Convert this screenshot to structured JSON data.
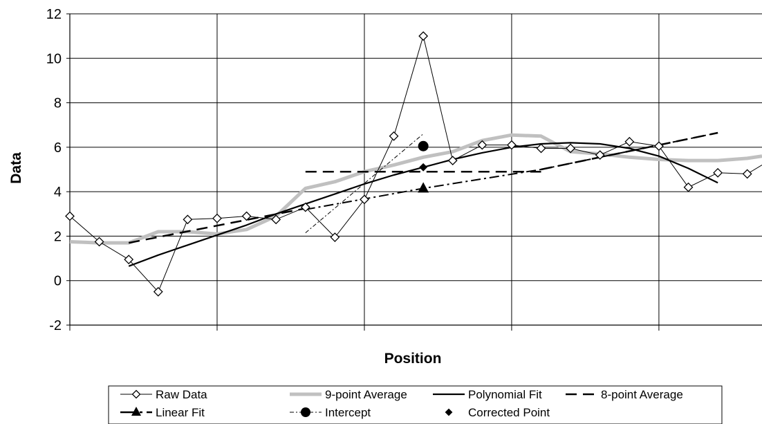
{
  "chart_data": {
    "type": "line",
    "xlabel": "Position",
    "ylabel": "Data",
    "ylim": [
      -2,
      12
    ],
    "yticks": [
      "12",
      "10",
      "8",
      "6",
      "4",
      "2",
      "0",
      "-2"
    ],
    "xlim": [
      0,
      23.5
    ],
    "grid": true,
    "legend_position": "bottom",
    "series": [
      {
        "name": "Raw Data",
        "style": "thin-line-open-diamond",
        "color": "#000000",
        "x": [
          0,
          1,
          2,
          3,
          4,
          5,
          6,
          7,
          8,
          9,
          10,
          11,
          12,
          13,
          14,
          15,
          16,
          17,
          18,
          19,
          20,
          21,
          22,
          23,
          23.5
        ],
        "y": [
          2.9,
          1.75,
          0.95,
          -0.5,
          2.75,
          2.8,
          2.9,
          2.75,
          3.3,
          1.95,
          3.65,
          6.5,
          11.0,
          5.4,
          6.1,
          6.1,
          5.95,
          5.95,
          5.65,
          6.25,
          6.05,
          4.2,
          4.85,
          4.8,
          5.2
        ]
      },
      {
        "name": "9-point Average",
        "style": "thick-grey-line",
        "color": "#c0c0c0",
        "x": [
          0,
          1,
          2,
          3,
          4,
          5,
          6,
          7,
          8,
          9,
          10,
          11,
          12,
          13,
          14,
          15,
          16,
          17,
          18,
          19,
          20,
          21,
          22,
          23,
          23.5
        ],
        "y": [
          1.75,
          1.7,
          1.7,
          2.2,
          2.2,
          2.1,
          2.3,
          2.9,
          4.15,
          4.45,
          4.9,
          5.2,
          5.55,
          5.8,
          6.3,
          6.55,
          6.5,
          5.8,
          5.7,
          5.55,
          5.45,
          5.4,
          5.4,
          5.5,
          5.6
        ]
      },
      {
        "name": "Polynomial  Fit",
        "style": "solid-line",
        "color": "#000000",
        "x": [
          2,
          3,
          4,
          5,
          6,
          7,
          8,
          9,
          10,
          11,
          12,
          13,
          14,
          15,
          16,
          17,
          18,
          19,
          20,
          21,
          22
        ],
        "y": [
          0.65,
          1.15,
          1.6,
          2.05,
          2.5,
          3.0,
          3.45,
          3.9,
          4.35,
          4.75,
          5.1,
          5.45,
          5.75,
          6.0,
          6.15,
          6.2,
          6.15,
          5.95,
          5.6,
          5.05,
          4.4
        ]
      },
      {
        "name": "8-point Average",
        "style": "long-dash-line",
        "color": "#000000",
        "x": [
          2,
          3,
          4,
          5,
          6,
          7,
          8
        ],
        "y": [
          1.7,
          2.0,
          2.25,
          2.5,
          2.75,
          3.0,
          3.25
        ],
        "segments": [
          {
            "x": [
              2,
              8
            ],
            "y": [
              1.7,
              3.25
            ]
          },
          {
            "x": [
              8,
              16
            ],
            "y": [
              4.9,
              4.9
            ]
          },
          {
            "x": [
              16,
              22
            ],
            "y": [
              5.0,
              6.65
            ]
          }
        ]
      },
      {
        "name": "Linear Fit",
        "style": "dash-dot-line-triangle",
        "color": "#000000",
        "x": [
          8,
          12,
          16,
          22
        ],
        "y": [
          3.2,
          4.15,
          5.0,
          6.65
        ],
        "marker_x": 12,
        "marker_y": 4.15
      },
      {
        "name": "Intercept",
        "style": "thin-dash-dot-line-circle",
        "color": "#000000",
        "x": [
          8,
          12
        ],
        "y": [
          2.15,
          6.6
        ],
        "marker_x": 12,
        "marker_y": 6.05
      },
      {
        "name": "Corrected Point",
        "style": "filled-diamond-marker",
        "color": "#000000",
        "x": [
          12
        ],
        "y": [
          5.1
        ]
      }
    ],
    "legend": [
      [
        "Raw Data",
        "9-point Average",
        "Polynomial  Fit",
        "8-point Average"
      ],
      [
        "Linear Fit",
        "Intercept",
        "Corrected Point"
      ]
    ]
  }
}
